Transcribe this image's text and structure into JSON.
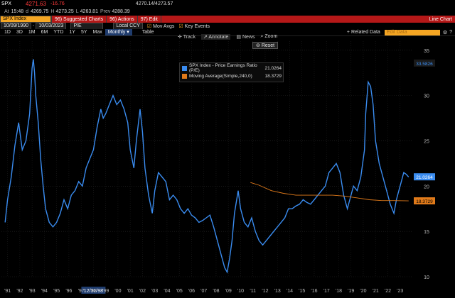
{
  "header": {
    "ticker": "SPX",
    "last": "4271.63",
    "change": "-16.76",
    "bid_ask": "4270.14/4273.57",
    "at_label": "At",
    "time": "15:48",
    "d_label": "d",
    "open": "4269.75",
    "high_label": "H",
    "high": "4273.25",
    "low_label": "L",
    "low": "4263.81",
    "prev_label": "Prev",
    "prev": "4288.39"
  },
  "menubar": {
    "security": "SPX Index",
    "suggested": "96) Suggested Charts",
    "actions": "96) Actions",
    "edit": "97) Edit",
    "title": "Line Chart"
  },
  "controls": {
    "start_date": "10/09/1990",
    "end_date": "10/03/2023",
    "field": "P/E",
    "ccy": "Local CCY",
    "mov_avgs": "Mov Avgs",
    "key_events": "Key Events"
  },
  "periods": [
    "1D",
    "3D",
    "1M",
    "6M",
    "YTD",
    "1Y",
    "5Y",
    "Max",
    "Monthly"
  ],
  "period_selected": "Monthly",
  "table_label": "Table",
  "related_data": "Related Data",
  "edit_data_label": "Edit Data",
  "toolbar": {
    "track": "Track",
    "annotate": "Annotate",
    "news": "News",
    "zoom": "Zoom",
    "reset": "Reset"
  },
  "colors": {
    "series": "#3a8cf0",
    "ma": "#e07a1a",
    "accent": "#f5a623",
    "red": "#b51818"
  },
  "chart_data": {
    "type": "line",
    "ylim": [
      10,
      36
    ],
    "y_ticks": [
      10,
      15,
      20,
      25,
      30,
      35
    ],
    "x_ticks": [
      "'91",
      "'92",
      "'93",
      "'94",
      "'95",
      "'96",
      "'97",
      "'98",
      "'99",
      "'00",
      "'01",
      "'02",
      "'03",
      "'04",
      "'05",
      "'06",
      "'07",
      "'08",
      "'09",
      "'10",
      "'11",
      "'12",
      "'13",
      "'14",
      "'15",
      "'16",
      "'17",
      "'18",
      "'19",
      "'20",
      "'21",
      "'22",
      "'23"
    ],
    "x_marker": "12/31/98",
    "series": [
      {
        "name": "SPX Index - Price Earnings Ratio (P/E)",
        "last": "21.0264",
        "x": [
          1990.8,
          1991.0,
          1991.3,
          1991.6,
          1991.9,
          1992.2,
          1992.5,
          1992.8,
          1993.0,
          1993.1,
          1993.2,
          1993.3,
          1993.5,
          1993.7,
          1993.9,
          1994.1,
          1994.4,
          1994.7,
          1995.0,
          1995.3,
          1995.6,
          1995.9,
          1996.2,
          1996.5,
          1996.8,
          1997.1,
          1997.4,
          1997.7,
          1998.0,
          1998.3,
          1998.6,
          1998.8,
          1999.0,
          1999.3,
          1999.6,
          1999.9,
          2000.2,
          2000.5,
          2000.8,
          2001.0,
          2001.3,
          2001.5,
          2001.8,
          2002.0,
          2002.2,
          2002.5,
          2002.8,
          2003.0,
          2003.3,
          2003.6,
          2003.9,
          2004.2,
          2004.5,
          2004.8,
          2005.1,
          2005.4,
          2005.7,
          2006.0,
          2006.3,
          2006.6,
          2006.9,
          2007.2,
          2007.5,
          2007.8,
          2008.1,
          2008.4,
          2008.7,
          2008.9,
          2009.1,
          2009.3,
          2009.5,
          2009.8,
          2010.0,
          2010.3,
          2010.6,
          2010.9,
          2011.2,
          2011.5,
          2011.8,
          2012.1,
          2012.4,
          2012.7,
          2013.0,
          2013.3,
          2013.6,
          2013.9,
          2014.2,
          2014.5,
          2014.8,
          2015.1,
          2015.4,
          2015.7,
          2016.0,
          2016.3,
          2016.6,
          2016.9,
          2017.2,
          2017.5,
          2017.8,
          2018.1,
          2018.4,
          2018.7,
          2018.9,
          2019.2,
          2019.5,
          2019.8,
          2020.1,
          2020.2,
          2020.4,
          2020.6,
          2020.8,
          2021.0,
          2021.3,
          2021.6,
          2021.9,
          2022.2,
          2022.5,
          2022.7,
          2022.9,
          2023.1,
          2023.3,
          2023.5,
          2023.7
        ],
        "values": [
          16.0,
          18.5,
          21.0,
          24.5,
          27.0,
          24.0,
          25.0,
          28.0,
          33.0,
          34.0,
          32.5,
          30.0,
          27.0,
          23.0,
          20.0,
          17.5,
          16.0,
          15.5,
          16.0,
          17.0,
          18.5,
          17.5,
          19.0,
          19.5,
          20.5,
          20.0,
          22.0,
          23.0,
          24.0,
          26.5,
          28.5,
          27.5,
          28.0,
          29.0,
          30.0,
          29.0,
          29.5,
          28.5,
          27.0,
          24.0,
          22.0,
          25.0,
          28.5,
          26.0,
          22.0,
          19.0,
          17.0,
          19.5,
          21.5,
          21.0,
          20.5,
          18.5,
          19.0,
          18.5,
          17.5,
          17.0,
          17.5,
          16.8,
          16.5,
          16.0,
          16.2,
          16.5,
          16.8,
          15.5,
          14.0,
          12.5,
          11.0,
          10.5,
          12.0,
          14.0,
          17.0,
          19.5,
          17.5,
          16.0,
          15.5,
          16.5,
          15.0,
          14.0,
          13.5,
          14.0,
          14.5,
          15.0,
          15.5,
          16.0,
          16.5,
          17.5,
          17.5,
          17.8,
          18.0,
          18.5,
          18.2,
          18.0,
          18.5,
          19.0,
          19.5,
          20.0,
          21.5,
          22.0,
          22.5,
          21.5,
          19.0,
          17.5,
          18.5,
          20.0,
          19.5,
          21.0,
          24.0,
          28.0,
          31.5,
          31.0,
          29.0,
          25.0,
          22.5,
          21.0,
          19.5,
          18.0,
          17.0,
          18.5,
          19.5,
          20.5,
          21.5,
          21.3,
          21.0
        ]
      },
      {
        "name": "Moving Average(Simple,240,0)",
        "last": "18.3729",
        "x": [
          2010.8,
          2011.5,
          2012.5,
          2013.5,
          2014.5,
          2015.5,
          2016.5,
          2017.5,
          2018.5,
          2019.5,
          2020.5,
          2021.5,
          2022.5,
          2023.7
        ],
        "values": [
          20.4,
          20.1,
          19.5,
          19.2,
          19.0,
          19.0,
          19.0,
          19.0,
          18.9,
          18.7,
          18.5,
          18.4,
          18.4,
          18.37
        ]
      }
    ]
  }
}
